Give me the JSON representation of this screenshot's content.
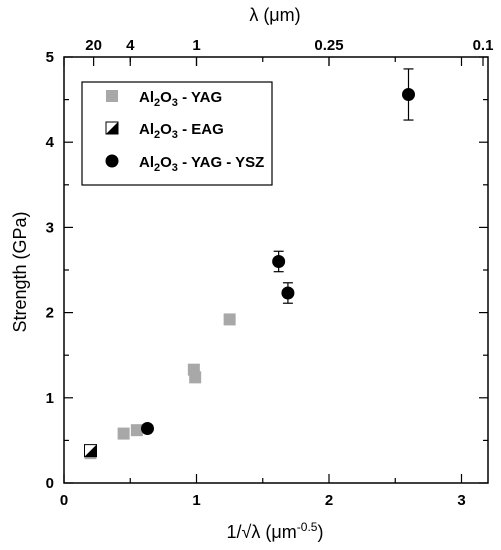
{
  "chart_data": {
    "type": "scatter",
    "xlabel": "1/√λ (μm⁻⁰·⁵)",
    "ylabel": "Strength (GPa)",
    "top_xlabel": "λ (μm)",
    "xlim": [
      0,
      3.2
    ],
    "ylim": [
      0,
      5
    ],
    "x_ticks": [
      0,
      1,
      2,
      3
    ],
    "y_ticks": [
      0,
      1,
      2,
      3,
      4,
      5
    ],
    "top_ticks": [
      {
        "label": "20",
        "lambda": 20
      },
      {
        "label": "4",
        "lambda": 4
      },
      {
        "label": "1",
        "lambda": 1
      },
      {
        "label": "0.25",
        "lambda": 0.25
      },
      {
        "label": "0.1",
        "lambda": 0.1
      }
    ],
    "grid": false,
    "legend_position": "top-left",
    "series": [
      {
        "name": "Al2O3 - YAG",
        "marker": "square",
        "color": "#a8a8a8",
        "points": [
          {
            "x": 0.2,
            "y": 0.35
          },
          {
            "x": 0.45,
            "y": 0.58
          },
          {
            "x": 0.55,
            "y": 0.62
          },
          {
            "x": 0.98,
            "y": 1.33
          },
          {
            "x": 0.99,
            "y": 1.24
          },
          {
            "x": 1.25,
            "y": 1.92
          }
        ]
      },
      {
        "name": "Al2O3 - EAG",
        "marker": "half-square",
        "color": "#000000",
        "points": [
          {
            "x": 0.2,
            "y": 0.38
          }
        ]
      },
      {
        "name": "Al2O3 - YAG - YSZ",
        "marker": "circle",
        "color": "#000000",
        "points": [
          {
            "x": 0.63,
            "y": 0.64,
            "err": 0
          },
          {
            "x": 1.62,
            "y": 2.6,
            "err": 0.12
          },
          {
            "x": 1.69,
            "y": 2.23,
            "err": 0.12
          },
          {
            "x": 2.6,
            "y": 4.56,
            "err": 0.3
          }
        ]
      }
    ]
  }
}
